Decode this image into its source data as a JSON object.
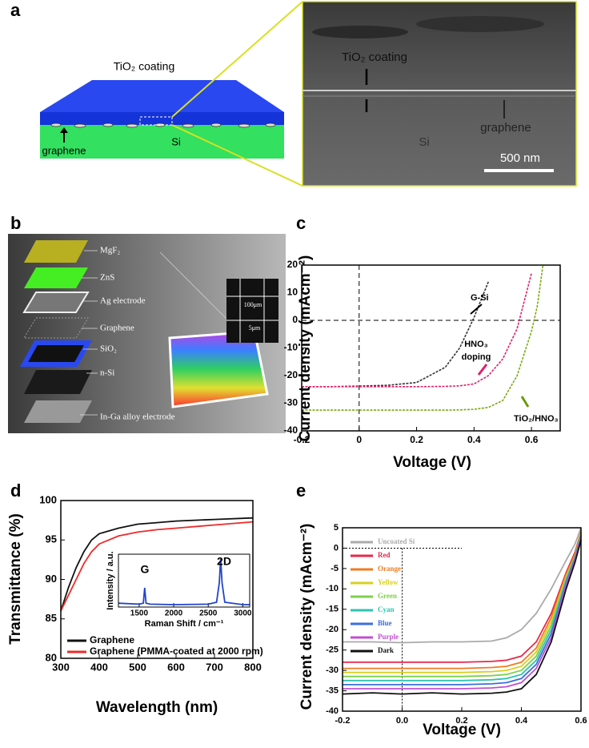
{
  "panel_a": {
    "label": "a",
    "diagram": {
      "coating": "TiO₂ coating",
      "substrate": "Si",
      "graphene": "graphene"
    },
    "sem": {
      "coating": "TiO₂ coating",
      "graphene": "graphene",
      "substrate": "Si",
      "scale_bar": "500 nm"
    }
  },
  "panel_b": {
    "label": "b",
    "layers": [
      "MgF₂",
      "ZnS",
      "Ag electrode",
      "Graphene",
      "SiO₂",
      "n-Si",
      "In-Ga alloy electrode"
    ],
    "inset": [
      "100μm",
      "5μm"
    ]
  },
  "chart_data": [
    {
      "type": "line",
      "panel_label": "c",
      "xlabel": "Voltage (V)",
      "ylabel": "Current density (mAcm⁻²)",
      "xlim": [
        -0.2,
        0.7
      ],
      "ylim": [
        -40,
        20
      ],
      "xticks": [
        -0.2,
        0,
        0.2,
        0.4,
        0.6
      ],
      "yticks": [
        -40,
        -30,
        -20,
        -10,
        0,
        10,
        20
      ],
      "x": [
        -0.2,
        -0.1,
        0,
        0.1,
        0.2,
        0.3,
        0.35,
        0.4,
        0.45,
        0.5,
        0.55,
        0.6,
        0.62,
        0.64
      ],
      "series": [
        {
          "name": "G-Si",
          "color": "#333333",
          "values": [
            -24,
            -24,
            -23.8,
            -23.5,
            -22.5,
            -17,
            -10,
            1,
            14,
            null,
            null,
            null,
            null,
            null
          ]
        },
        {
          "name": "HNO₃ doping",
          "color": "#e0206a",
          "values": [
            -24,
            -24,
            -24,
            -24,
            -24,
            -23.9,
            -23.7,
            -23,
            -20,
            -14,
            -3,
            17,
            null,
            null
          ]
        },
        {
          "name": "TiO₂/HNO₃",
          "color": "#7aaa10",
          "values": [
            -32.5,
            -32.5,
            -32.5,
            -32.5,
            -32.5,
            -32.5,
            -32.4,
            -32.2,
            -31.5,
            -29,
            -20,
            -4,
            5,
            20
          ]
        }
      ],
      "annotations": [
        "G-Si",
        "HNO₃",
        "doping",
        "TiO₂/HNO₃"
      ]
    },
    {
      "type": "line",
      "panel_label": "d",
      "xlabel": "Wavelength (nm)",
      "ylabel": "Transmittance (%)",
      "xlim": [
        300,
        800
      ],
      "ylim": [
        80,
        100
      ],
      "xticks": [
        300,
        400,
        500,
        600,
        700,
        800
      ],
      "yticks": [
        80,
        85,
        90,
        95,
        100
      ],
      "x": [
        300,
        320,
        340,
        360,
        380,
        400,
        450,
        500,
        550,
        600,
        700,
        800
      ],
      "legend": "lower left",
      "series": [
        {
          "name": "Graphene",
          "color": "#111111",
          "values": [
            86,
            89,
            91.5,
            93.5,
            95,
            95.8,
            96.5,
            97,
            97.2,
            97.4,
            97.6,
            97.8
          ]
        },
        {
          "name": "Graphene (PMMA-coated at 2000 rpm)",
          "color": "#ee2a2a",
          "values": [
            86,
            88,
            90,
            92,
            93.5,
            94.5,
            95.5,
            96,
            96.3,
            96.5,
            96.9,
            97.3
          ]
        }
      ]
    },
    {
      "type": "line",
      "xlabel": "Raman Shift / cm⁻¹",
      "ylabel": "Intensity / a.u.",
      "xlim": [
        1200,
        3100
      ],
      "ylim": [
        0,
        1.1
      ],
      "xticks": [
        1500,
        2000,
        2500,
        3000
      ],
      "yticks": [],
      "x": [
        1200,
        1500,
        1560,
        1580,
        1600,
        1660,
        2000,
        2500,
        2620,
        2660,
        2680,
        2700,
        2740,
        3000,
        3100
      ],
      "series": [
        {
          "color": "#2244cc",
          "values": [
            0.08,
            0.06,
            0.08,
            0.4,
            0.08,
            0.06,
            0.05,
            0.06,
            0.1,
            0.5,
            1,
            0.5,
            0.1,
            0.05,
            0.05
          ]
        }
      ],
      "annotations": [
        "G",
        "2D"
      ]
    },
    {
      "type": "line",
      "panel_label": "e",
      "xlabel": "Voltage (V)",
      "ylabel": "Current density (mAcm⁻²)",
      "xlim": [
        -0.2,
        0.6
      ],
      "ylim": [
        -40,
        5
      ],
      "xticks": [
        -0.2,
        {
          "value": 0,
          "label": "0.0"
        },
        0.2,
        0.4,
        0.6
      ],
      "yticks": [
        5,
        0,
        -5,
        -10,
        -15,
        -20,
        -25,
        -30,
        -35,
        -40
      ],
      "x": [
        -0.2,
        -0.1,
        0,
        0.1,
        0.2,
        0.3,
        0.35,
        0.4,
        0.45,
        0.5,
        0.55,
        0.58,
        0.6
      ],
      "legend": "upper left",
      "series": [
        {
          "name": "Uncoated Si",
          "color": "#aaaaaa",
          "values": [
            -23,
            -23,
            -23.2,
            -23,
            -23,
            -22.8,
            -22,
            -20,
            -16,
            -10,
            -3,
            1,
            5
          ]
        },
        {
          "name": "Red",
          "color": "#e8274a",
          "values": [
            -28,
            -28,
            -28,
            -28,
            -28,
            -27.8,
            -27.5,
            -26.5,
            -23,
            -16,
            -6,
            -1,
            4
          ]
        },
        {
          "name": "Orange",
          "color": "#f07b20",
          "values": [
            -29.5,
            -29.5,
            -29.5,
            -29.5,
            -29.5,
            -29.3,
            -29,
            -28,
            -24.5,
            -17,
            -6.5,
            -1.5,
            4
          ]
        },
        {
          "name": "Yellow",
          "color": "#d8d020",
          "values": [
            -30.5,
            -30.5,
            -30.5,
            -30.5,
            -30.5,
            -30.3,
            -30,
            -29,
            -25.5,
            -18,
            -7,
            -2,
            3.5
          ]
        },
        {
          "name": "Green",
          "color": "#7ed04b",
          "values": [
            -31.5,
            -31.5,
            -31.5,
            -31.5,
            -31.5,
            -31.3,
            -31,
            -30,
            -26.5,
            -19,
            -7.5,
            -2,
            3.5
          ]
        },
        {
          "name": "Cyan",
          "color": "#2ec4b0",
          "values": [
            -32.5,
            -32.5,
            -32.5,
            -32.5,
            -32.5,
            -32.3,
            -32,
            -31,
            -27.5,
            -20,
            -8,
            -2.5,
            3
          ]
        },
        {
          "name": "Blue",
          "color": "#3a6ee0",
          "values": [
            -33.5,
            -33.5,
            -33.5,
            -33.5,
            -33.5,
            -33.3,
            -33,
            -32,
            -28.5,
            -21,
            -8.5,
            -2.5,
            3
          ]
        },
        {
          "name": "Purple",
          "color": "#c050d0",
          "values": [
            -34.5,
            -34.5,
            -34.5,
            -34.5,
            -34.5,
            -34.3,
            -34,
            -33,
            -29.5,
            -22,
            -9,
            -3,
            2.5
          ]
        },
        {
          "name": "Dark",
          "color": "#111111",
          "values": [
            -35.8,
            -35.5,
            -35.8,
            -35.5,
            -35.8,
            -35.6,
            -35.3,
            -34.5,
            -31,
            -23,
            -10,
            -3.5,
            2
          ]
        }
      ]
    }
  ]
}
